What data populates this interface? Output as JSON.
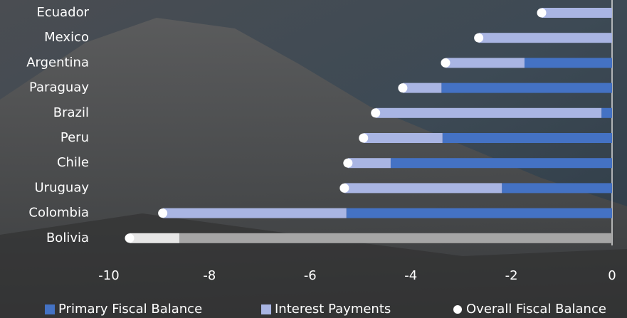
{
  "chart_data": {
    "type": "bar",
    "orientation": "horizontal",
    "stacked": true,
    "categories": [
      "Ecuador",
      "Mexico",
      "Argentina",
      "Paraguay",
      "Brazil",
      "Peru",
      "Chile",
      "Uruguay",
      "Colombia",
      "Bolivia"
    ],
    "series": [
      {
        "name": "Primary Fiscal Balance",
        "color": "#4472c4",
        "colors": [
          "#4472c4",
          "#4472c4",
          "#4472c4",
          "#4472c4",
          "#4472c4",
          "#4472c4",
          "#4472c4",
          "#4472c4",
          "#4472c4",
          "#a6a6a6"
        ],
        "values": [
          0,
          0,
          -1.74,
          -3.39,
          -0.21,
          -3.37,
          -4.4,
          -2.19,
          -5.28,
          -8.6
        ]
      },
      {
        "name": "Interest Payments",
        "color": "#a9b5e3",
        "colors": [
          "#a9b5e3",
          "#a9b5e3",
          "#a9b5e3",
          "#a9b5e3",
          "#a9b5e3",
          "#a9b5e3",
          "#a9b5e3",
          "#a9b5e3",
          "#a9b5e3",
          "#e6e6e6"
        ],
        "values": [
          -1.4,
          -2.65,
          -1.57,
          -0.77,
          -4.49,
          -1.57,
          -0.85,
          -3.13,
          -3.65,
          -0.99
        ]
      },
      {
        "name": "Overall Fiscal Balance",
        "type": "scatter",
        "color": "#ffffff",
        "values": [
          -1.4,
          -2.65,
          -3.31,
          -4.16,
          -4.7,
          -4.94,
          -5.25,
          -5.32,
          -8.93,
          -9.59
        ]
      }
    ],
    "xlim": [
      -10,
      0
    ],
    "xticks": [
      -10,
      -8,
      -6,
      -4,
      -2,
      0
    ],
    "legend": "bottom"
  }
}
